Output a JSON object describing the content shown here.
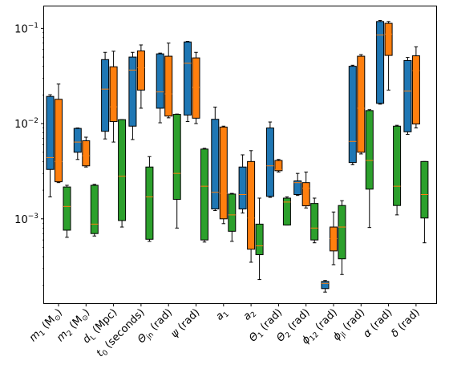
{
  "chart_data": {
    "type": "boxplot",
    "y_scale": "log",
    "ylim": [
      0.00013,
      0.17
    ],
    "y_ticks": [
      {
        "value": 0.001,
        "base": "10",
        "exp": "−3"
      },
      {
        "value": 0.01,
        "base": "10",
        "exp": "−2"
      },
      {
        "value": 0.1,
        "base": "10",
        "exp": "−1"
      }
    ],
    "grid": false,
    "colors": [
      "#1f77b4",
      "#ff7f0e",
      "#2ca02c"
    ],
    "median_color": "#ff7f0e",
    "categories": [
      {
        "main": "m",
        "sub": "1",
        "rest": " (M",
        "unit_sub": "⊙",
        "tail": ")"
      },
      {
        "main": "m",
        "sub": "2",
        "rest": " (M",
        "unit_sub": "⊙",
        "tail": ")"
      },
      {
        "main": "d",
        "sub": "L",
        "rest": " (Mpc)",
        "unit_sub": "",
        "tail": ""
      },
      {
        "main": "t",
        "sub": "0",
        "rest": " (seconds)",
        "unit_sub": "",
        "tail": ""
      },
      {
        "main": "Θ",
        "sub": "jn",
        "rest": " (rad)",
        "unit_sub": "",
        "tail": ""
      },
      {
        "main": "ψ",
        "sub": "",
        "rest": " (rad)",
        "unit_sub": "",
        "tail": ""
      },
      {
        "main": "a",
        "sub": "1",
        "rest": "",
        "unit_sub": "",
        "tail": ""
      },
      {
        "main": "a",
        "sub": "2",
        "rest": "",
        "unit_sub": "",
        "tail": ""
      },
      {
        "main": "Θ",
        "sub": "1",
        "rest": " (rad)",
        "unit_sub": "",
        "tail": ""
      },
      {
        "main": "Θ",
        "sub": "2",
        "rest": " (rad)",
        "unit_sub": "",
        "tail": ""
      },
      {
        "main": "ϕ",
        "sub": "12",
        "rest": " (rad)",
        "unit_sub": "",
        "tail": ""
      },
      {
        "main": "ϕ",
        "sub": "jl",
        "rest": " (rad)",
        "unit_sub": "",
        "tail": ""
      },
      {
        "main": "α",
        "sub": "",
        "rest": " (rad)",
        "unit_sub": "",
        "tail": ""
      },
      {
        "main": "δ",
        "sub": "",
        "rest": " (rad)",
        "unit_sub": "",
        "tail": ""
      }
    ],
    "series": [
      {
        "color": "#1f77b4",
        "boxes": [
          {
            "whislo": 0.0017,
            "q1": 0.0033,
            "med": 0.0044,
            "q3": 0.0193,
            "whishi": 0.0201
          },
          {
            "whislo": 0.0042,
            "q1": 0.005,
            "med": 0.0064,
            "q3": 0.0089,
            "whishi": 0.009
          },
          {
            "whislo": 0.0069,
            "q1": 0.0083,
            "med": 0.023,
            "q3": 0.047,
            "whishi": 0.056
          },
          {
            "whislo": 0.0068,
            "q1": 0.0094,
            "med": 0.0365,
            "q3": 0.05,
            "whishi": 0.056
          },
          {
            "whislo": 0.0102,
            "q1": 0.0145,
            "med": 0.0215,
            "q3": 0.054,
            "whishi": 0.055
          },
          {
            "whislo": 0.0105,
            "q1": 0.0123,
            "med": 0.043,
            "q3": 0.072,
            "whishi": 0.073
          },
          {
            "whislo": 0.00122,
            "q1": 0.00127,
            "med": 0.0019,
            "q3": 0.0111,
            "whishi": 0.0149
          },
          {
            "whislo": 0.00115,
            "q1": 0.00127,
            "med": 0.0018,
            "q3": 0.0035,
            "whishi": 0.0047
          },
          {
            "whislo": 0.00168,
            "q1": 0.00172,
            "med": 0.0036,
            "q3": 0.009,
            "whishi": 0.0104
          },
          {
            "whislo": 0.00176,
            "q1": 0.0018,
            "med": 0.0024,
            "q3": 0.0025,
            "whishi": 0.003
          },
          {
            "whislo": 0.00017,
            "q1": 0.000185,
            "med": 0.00021,
            "q3": 0.00022,
            "whishi": 0.000225
          },
          {
            "whislo": 0.0037,
            "q1": 0.0039,
            "med": 0.0065,
            "q3": 0.04,
            "whishi": 0.041
          },
          {
            "whislo": 0.016,
            "q1": 0.0163,
            "med": 0.085,
            "q3": 0.118,
            "whishi": 0.121
          },
          {
            "whislo": 0.0077,
            "q1": 0.0082,
            "med": 0.022,
            "q3": 0.046,
            "whishi": 0.0495
          }
        ]
      },
      {
        "color": "#ff7f0e",
        "boxes": [
          {
            "whislo": 0.0024,
            "q1": 0.00245,
            "med": 0.004,
            "q3": 0.018,
            "whishi": 0.026
          },
          {
            "whislo": 0.0035,
            "q1": 0.0036,
            "med": 0.0046,
            "q3": 0.0066,
            "whishi": 0.0072
          },
          {
            "whislo": 0.0064,
            "q1": 0.0105,
            "med": 0.015,
            "q3": 0.0395,
            "whishi": 0.0575
          },
          {
            "whislo": 0.0145,
            "q1": 0.0225,
            "med": 0.0385,
            "q3": 0.058,
            "whishi": 0.067
          },
          {
            "whislo": 0.0115,
            "q1": 0.012,
            "med": 0.0205,
            "q3": 0.051,
            "whishi": 0.07
          },
          {
            "whislo": 0.01,
            "q1": 0.0114,
            "med": 0.024,
            "q3": 0.049,
            "whishi": 0.056
          },
          {
            "whislo": 0.00089,
            "q1": 0.001,
            "med": 0.00185,
            "q3": 0.0092,
            "whishi": 0.0094
          },
          {
            "whislo": 0.00035,
            "q1": 0.00048,
            "med": 0.00102,
            "q3": 0.004,
            "whishi": 0.0052
          },
          {
            "whislo": 0.0031,
            "q1": 0.0032,
            "med": 0.0033,
            "q3": 0.0041,
            "whishi": 0.0042
          },
          {
            "whislo": 0.0013,
            "q1": 0.00137,
            "med": 0.0021,
            "q3": 0.0024,
            "whishi": 0.0031
          },
          {
            "whislo": 0.00033,
            "q1": 0.00046,
            "med": 0.00062,
            "q3": 0.00082,
            "whishi": 0.00118
          },
          {
            "whislo": 0.0048,
            "q1": 0.005,
            "med": 0.0145,
            "q3": 0.051,
            "whishi": 0.053
          },
          {
            "whislo": 0.0225,
            "q1": 0.052,
            "med": 0.087,
            "q3": 0.113,
            "whishi": 0.118
          },
          {
            "whislo": 0.009,
            "q1": 0.0099,
            "med": 0.036,
            "q3": 0.0515,
            "whishi": 0.064
          }
        ]
      },
      {
        "color": "#2ca02c",
        "boxes": [
          {
            "whislo": 0.00064,
            "q1": 0.00076,
            "med": 0.00135,
            "q3": 0.00216,
            "whishi": 0.00225
          },
          {
            "whislo": 0.00066,
            "q1": 0.0007,
            "med": 0.00088,
            "q3": 0.00225,
            "whishi": 0.0023
          },
          {
            "whislo": 0.00082,
            "q1": 0.00096,
            "med": 0.0028,
            "q3": 0.011,
            "whishi": 0.011
          },
          {
            "whislo": 0.00058,
            "q1": 0.00061,
            "med": 0.0017,
            "q3": 0.0035,
            "whishi": 0.0045
          },
          {
            "whislo": 0.0008,
            "q1": 0.0016,
            "med": 0.003,
            "q3": 0.0125,
            "whishi": 0.0126
          },
          {
            "whislo": 0.00057,
            "q1": 0.0006,
            "med": 0.0022,
            "q3": 0.0054,
            "whishi": 0.0055
          },
          {
            "whislo": 0.00058,
            "q1": 0.00074,
            "med": 0.0011,
            "q3": 0.00182,
            "whishi": 0.00185
          },
          {
            "whislo": 0.00023,
            "q1": 0.00042,
            "med": 0.00052,
            "q3": 0.00088,
            "whishi": 0.00165
          },
          {
            "whislo": 0.00086,
            "q1": 0.00086,
            "med": 0.0015,
            "q3": 0.00165,
            "whishi": 0.0017
          },
          {
            "whislo": 0.00056,
            "q1": 0.0006,
            "med": 0.0008,
            "q3": 0.00145,
            "whishi": 0.00165
          },
          {
            "whislo": 0.00026,
            "q1": 0.00038,
            "med": 0.00082,
            "q3": 0.00138,
            "whishi": 0.00155
          },
          {
            "whislo": 0.00081,
            "q1": 0.00205,
            "med": 0.0041,
            "q3": 0.0137,
            "whishi": 0.014
          },
          {
            "whislo": 0.0011,
            "q1": 0.00138,
            "med": 0.0022,
            "q3": 0.0094,
            "whishi": 0.0096
          },
          {
            "whislo": 0.00056,
            "q1": 0.00102,
            "med": 0.0018,
            "q3": 0.004,
            "whishi": 0.004
          }
        ]
      }
    ]
  }
}
